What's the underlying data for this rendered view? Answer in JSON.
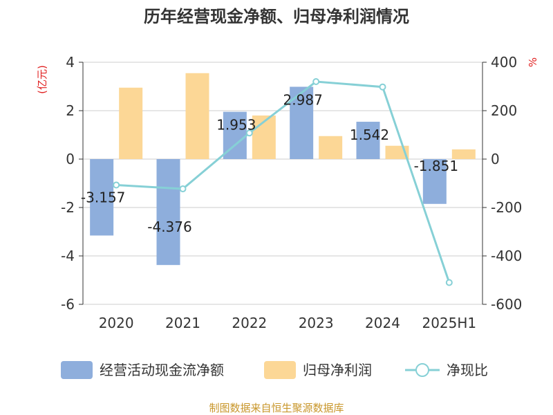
{
  "chart_data": {
    "type": "bar",
    "title": "历年经营现金净额、归母净利润情况",
    "categories": [
      "2020",
      "2021",
      "2022",
      "2023",
      "2024",
      "2025H1"
    ],
    "series": [
      {
        "name": "经营活动现金流净额",
        "kind": "bar",
        "axis": "left",
        "color": "#8eaedc",
        "values": [
          -3.157,
          -4.376,
          1.953,
          2.987,
          1.542,
          -1.851
        ],
        "labels": [
          "-3.157",
          "-4.376",
          "1.953",
          "2.987",
          "1.542",
          "-1.851"
        ]
      },
      {
        "name": "归母净利润",
        "kind": "bar",
        "axis": "left",
        "color": "#fcd796",
        "values": [
          2.95,
          3.55,
          1.8,
          0.95,
          0.55,
          0.4
        ]
      },
      {
        "name": "净现比",
        "kind": "line",
        "axis": "right",
        "color": "#86d0d6",
        "values": [
          -107,
          -123,
          108,
          320,
          298,
          -510
        ]
      }
    ],
    "yleft": {
      "label": "(亿元)",
      "ylim": [
        -6,
        4
      ],
      "ticks": [
        -6,
        -4,
        -2,
        0,
        2,
        4
      ]
    },
    "yright": {
      "label": "%",
      "ylim": [
        -600,
        400
      ],
      "ticks": [
        -600,
        -400,
        -200,
        0,
        200,
        400
      ]
    },
    "grid": true,
    "legend": "bottom"
  },
  "source": "制图数据来自恒生聚源数据库"
}
